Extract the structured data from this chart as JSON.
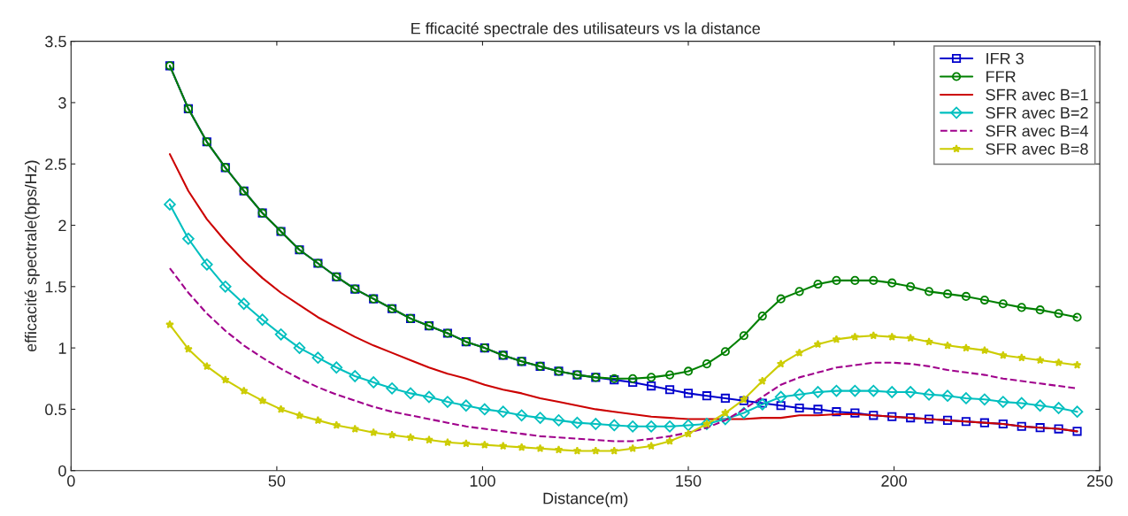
{
  "chart_data": {
    "type": "line",
    "title": "E fficacité spectrale des utilisateurs vs la distance",
    "xlabel": "Distance(m)",
    "ylabel": "efficacité spectrale(bps/Hz)",
    "x": [
      24,
      28.5,
      33,
      37.5,
      42,
      46.5,
      51,
      55.5,
      60,
      64.5,
      69,
      73.5,
      78,
      82.5,
      87,
      91.5,
      96,
      100.5,
      105,
      109.5,
      114,
      118.5,
      123,
      127.5,
      132,
      136.5,
      141,
      145.5,
      150,
      154.5,
      159,
      163.5,
      168,
      172.5,
      177,
      181.5,
      186,
      190.5,
      195,
      199.5,
      204,
      208.5,
      213,
      217.5,
      222,
      226.5,
      231,
      235.5,
      240,
      244.5
    ],
    "xlim": [
      0,
      250
    ],
    "xticks": [
      0,
      50,
      100,
      150,
      200,
      250
    ],
    "ylim": [
      0,
      3.5
    ],
    "yticks": [
      0,
      0.5,
      1,
      1.5,
      2,
      2.5,
      3,
      3.5
    ],
    "grid": false,
    "legend": "top right",
    "series": [
      {
        "name": "IFR 3",
        "color": "#0000cc",
        "marker": "square",
        "line_style": "solid",
        "values": [
          3.3,
          2.95,
          2.68,
          2.47,
          2.28,
          2.1,
          1.95,
          1.8,
          1.69,
          1.58,
          1.48,
          1.4,
          1.32,
          1.24,
          1.18,
          1.12,
          1.05,
          1.0,
          0.94,
          0.89,
          0.85,
          0.81,
          0.78,
          0.76,
          0.74,
          0.72,
          0.69,
          0.66,
          0.63,
          0.61,
          0.59,
          0.57,
          0.55,
          0.53,
          0.51,
          0.5,
          0.48,
          0.47,
          0.45,
          0.44,
          0.43,
          0.42,
          0.41,
          0.4,
          0.39,
          0.38,
          0.36,
          0.35,
          0.34,
          0.32
        ]
      },
      {
        "name": "FFR",
        "color": "#008000",
        "marker": "circle",
        "line_style": "solid",
        "values": [
          3.3,
          2.95,
          2.68,
          2.47,
          2.28,
          2.1,
          1.95,
          1.8,
          1.69,
          1.58,
          1.48,
          1.4,
          1.32,
          1.24,
          1.18,
          1.12,
          1.05,
          1.0,
          0.94,
          0.89,
          0.85,
          0.81,
          0.78,
          0.76,
          0.75,
          0.75,
          0.76,
          0.78,
          0.81,
          0.87,
          0.97,
          1.1,
          1.26,
          1.4,
          1.46,
          1.52,
          1.55,
          1.55,
          1.55,
          1.53,
          1.5,
          1.46,
          1.44,
          1.42,
          1.39,
          1.36,
          1.33,
          1.31,
          1.28,
          1.25
        ]
      },
      {
        "name": "SFR avec B=1",
        "color": "#cc0000",
        "marker": "none",
        "line_style": "solid",
        "values": [
          2.58,
          2.28,
          2.05,
          1.87,
          1.71,
          1.57,
          1.45,
          1.35,
          1.25,
          1.17,
          1.09,
          1.02,
          0.96,
          0.9,
          0.84,
          0.79,
          0.75,
          0.7,
          0.66,
          0.63,
          0.59,
          0.56,
          0.53,
          0.5,
          0.48,
          0.46,
          0.44,
          0.43,
          0.42,
          0.42,
          0.42,
          0.42,
          0.43,
          0.43,
          0.45,
          0.45,
          0.46,
          0.46,
          0.45,
          0.44,
          0.43,
          0.42,
          0.41,
          0.4,
          0.39,
          0.38,
          0.36,
          0.35,
          0.34,
          0.32
        ]
      },
      {
        "name": "SFR avec B=2",
        "color": "#00bfbf",
        "marker": "diamond",
        "line_style": "solid",
        "values": [
          2.17,
          1.89,
          1.68,
          1.5,
          1.36,
          1.23,
          1.11,
          1.0,
          0.92,
          0.84,
          0.77,
          0.72,
          0.67,
          0.63,
          0.6,
          0.56,
          0.53,
          0.5,
          0.48,
          0.45,
          0.43,
          0.41,
          0.39,
          0.38,
          0.37,
          0.36,
          0.36,
          0.36,
          0.37,
          0.38,
          0.42,
          0.47,
          0.54,
          0.6,
          0.62,
          0.64,
          0.65,
          0.65,
          0.65,
          0.64,
          0.64,
          0.62,
          0.61,
          0.59,
          0.58,
          0.56,
          0.55,
          0.53,
          0.51,
          0.48
        ]
      },
      {
        "name": "SFR avec B=4",
        "color": "#a0008c",
        "marker": "none",
        "line_style": "dashed",
        "values": [
          1.65,
          1.45,
          1.28,
          1.14,
          1.02,
          0.92,
          0.83,
          0.75,
          0.68,
          0.62,
          0.57,
          0.52,
          0.48,
          0.45,
          0.42,
          0.39,
          0.36,
          0.34,
          0.32,
          0.3,
          0.28,
          0.27,
          0.26,
          0.25,
          0.24,
          0.24,
          0.26,
          0.28,
          0.31,
          0.35,
          0.41,
          0.5,
          0.6,
          0.7,
          0.76,
          0.8,
          0.84,
          0.86,
          0.88,
          0.88,
          0.87,
          0.85,
          0.82,
          0.8,
          0.78,
          0.75,
          0.73,
          0.71,
          0.69,
          0.67
        ]
      },
      {
        "name": "SFR avec B=8",
        "color": "#cccc00",
        "marker": "star",
        "line_style": "solid",
        "values": [
          1.19,
          0.99,
          0.85,
          0.74,
          0.65,
          0.57,
          0.5,
          0.45,
          0.41,
          0.37,
          0.34,
          0.31,
          0.29,
          0.27,
          0.25,
          0.23,
          0.22,
          0.21,
          0.2,
          0.19,
          0.18,
          0.17,
          0.16,
          0.16,
          0.16,
          0.18,
          0.2,
          0.24,
          0.3,
          0.38,
          0.47,
          0.58,
          0.73,
          0.87,
          0.96,
          1.03,
          1.07,
          1.09,
          1.1,
          1.09,
          1.08,
          1.05,
          1.02,
          1.0,
          0.98,
          0.94,
          0.92,
          0.9,
          0.88,
          0.86
        ]
      }
    ]
  }
}
